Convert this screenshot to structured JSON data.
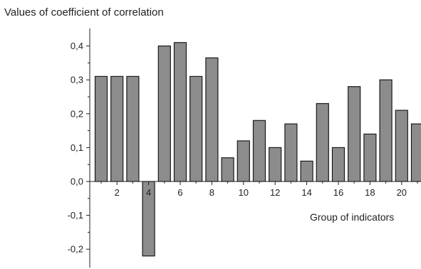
{
  "chart_data": {
    "type": "bar",
    "title": "Values of coefficient of correlation",
    "xlabel": "Group of indicators",
    "ylabel": "",
    "categories": [
      1,
      2,
      3,
      4,
      5,
      6,
      7,
      8,
      9,
      10,
      11,
      12,
      13,
      14,
      15,
      16,
      17,
      18,
      19,
      20,
      21
    ],
    "values": [
      0.31,
      0.31,
      0.31,
      -0.22,
      0.4,
      0.41,
      0.31,
      0.365,
      0.07,
      0.12,
      0.18,
      0.1,
      0.17,
      0.06,
      0.23,
      0.1,
      0.28,
      0.14,
      0.3,
      0.21,
      0.17
    ],
    "x_tick_labels": [
      "2",
      "4",
      "6",
      "8",
      "10",
      "12",
      "14",
      "16",
      "18",
      "20"
    ],
    "y_tick_labels": [
      "0,4",
      "0,3",
      "0,2",
      "0,1",
      "0,0",
      "-0,1",
      "-0,2"
    ],
    "y_ticks": [
      0.4,
      0.3,
      0.2,
      0.1,
      0.0,
      -0.1,
      -0.2
    ],
    "x_ticks": [
      2,
      4,
      6,
      8,
      10,
      12,
      14,
      16,
      18,
      20
    ],
    "ylim": [
      -0.25,
      0.45
    ],
    "grid": false,
    "bar_color": "#8c8c8c",
    "bar_edge_color": "#1a1a1a"
  }
}
